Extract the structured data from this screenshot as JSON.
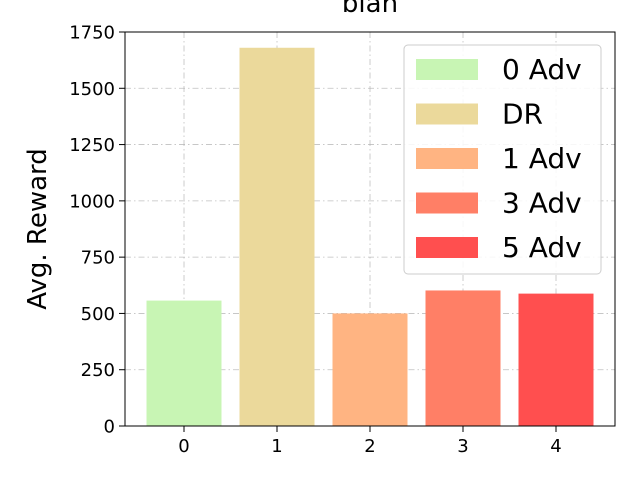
{
  "chart_data": {
    "type": "bar",
    "title": "bian",
    "xlabel": "",
    "ylabel": "Avg. Reward",
    "categories": [
      "0",
      "1",
      "2",
      "3",
      "4"
    ],
    "values": [
      557,
      1680,
      500,
      602,
      588
    ],
    "colors": [
      "#c8f5b4",
      "#ebd99b",
      "#ffb482",
      "#ff7f66",
      "#ff4f4f"
    ],
    "ylim": [
      0,
      1750
    ],
    "yticks": [
      0,
      250,
      500,
      750,
      1000,
      1250,
      1500,
      1750
    ],
    "ytick_labels": [
      "0",
      "250",
      "500",
      "750",
      "1000",
      "1250",
      "1500",
      "1750"
    ],
    "grid": true,
    "legend": {
      "placement": "top-right",
      "entries": [
        {
          "label": "0 Adv",
          "color": "#c8f5b4"
        },
        {
          "label": "DR",
          "color": "#ebd99b"
        },
        {
          "label": "1 Adv",
          "color": "#ffb482"
        },
        {
          "label": "3 Adv",
          "color": "#ff7f66"
        },
        {
          "label": "5 Adv",
          "color": "#ff4f4f"
        }
      ]
    }
  }
}
